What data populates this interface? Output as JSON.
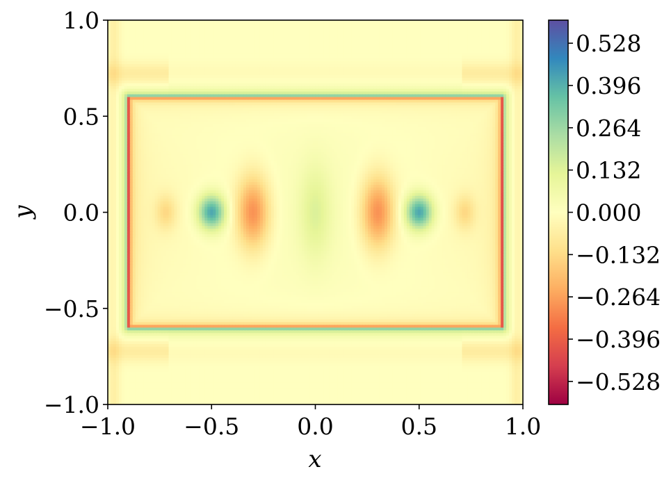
{
  "chart_data": {
    "type": "heatmap",
    "title": "",
    "xlabel": "x",
    "ylabel": "y",
    "xlim": [
      -1.0,
      1.0
    ],
    "ylim": [
      -1.0,
      1.0
    ],
    "xticks": [
      -1.0,
      -0.5,
      0.0,
      0.5,
      1.0
    ],
    "xtick_labels": [
      "−1.0",
      "−0.5",
      "0.0",
      "0.5",
      "1.0"
    ],
    "yticks": [
      -1.0,
      -0.5,
      0.0,
      0.5,
      1.0
    ],
    "ytick_labels": [
      "−1.0",
      "−0.5",
      "0.0",
      "0.5",
      "1.0"
    ],
    "grid": false,
    "colormap": "Spectral",
    "colorbar": {
      "vmin": -0.6,
      "vmax": 0.6,
      "ticks": [
        -0.528,
        -0.396,
        -0.264,
        -0.132,
        0.0,
        0.132,
        0.264,
        0.396,
        0.528
      ],
      "tick_labels": [
        "−0.528",
        "−0.396",
        "−0.264",
        "−0.132",
        "0.000",
        "0.132",
        "0.264",
        "0.396",
        "0.528"
      ]
    },
    "obstacle_rectangle": {
      "x": [
        -0.9,
        0.9
      ],
      "y": [
        -0.6,
        0.6
      ]
    },
    "features": [
      {
        "kind": "positive-blob",
        "x": -0.5,
        "y": 0.0,
        "value": 0.42
      },
      {
        "kind": "positive-blob",
        "x": 0.5,
        "y": 0.0,
        "value": 0.42
      },
      {
        "kind": "negative-blob",
        "x": -0.3,
        "y": 0.0,
        "value": -0.3
      },
      {
        "kind": "negative-blob",
        "x": 0.3,
        "y": 0.0,
        "value": -0.3
      },
      {
        "kind": "positive-blob",
        "x": 0.0,
        "y": 0.0,
        "value": 0.12
      },
      {
        "kind": "negative-blob",
        "x": -0.72,
        "y": 0.0,
        "value": -0.12
      },
      {
        "kind": "negative-blob",
        "x": 0.72,
        "y": 0.0,
        "value": -0.12
      }
    ]
  },
  "colors": {
    "colormap_stops": [
      "#9e0142",
      "#d53e4f",
      "#f46d43",
      "#fdae61",
      "#fee08b",
      "#ffffbf",
      "#e6f598",
      "#abdda4",
      "#66c2a5",
      "#3288bd",
      "#5e4fa2"
    ]
  }
}
